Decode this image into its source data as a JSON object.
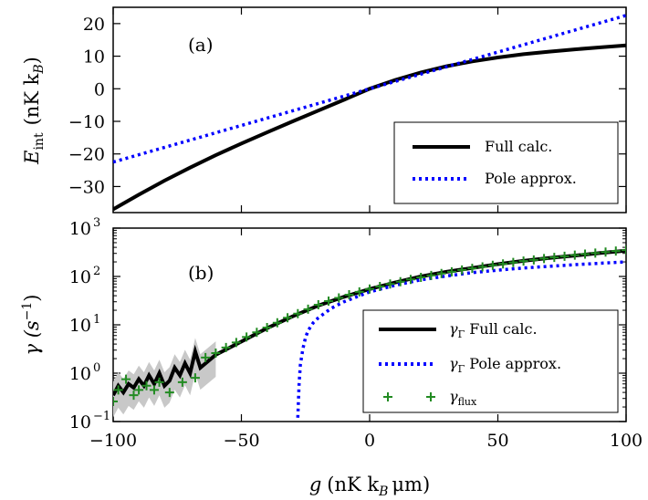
{
  "chart_data": [
    {
      "panel": "a",
      "type": "line",
      "panel_label": "(a)",
      "ylabel_parts": [
        "E",
        "int",
        "(nK k",
        "B",
        ")"
      ],
      "xlim": [
        -100,
        100
      ],
      "ylim": [
        -38,
        25
      ],
      "yticks": [
        20,
        10,
        0,
        -10,
        -20,
        -30
      ],
      "ytick_labels": [
        "20",
        "10",
        "0",
        "−10",
        "−20",
        "−30"
      ],
      "legend_position": "lower-right",
      "series": [
        {
          "name": "Full calc.",
          "color": "#000000",
          "style": "solid",
          "x": [
            -100,
            -90,
            -80,
            -70,
            -60,
            -50,
            -40,
            -30,
            -20,
            -10,
            0,
            10,
            20,
            30,
            40,
            50,
            60,
            70,
            80,
            90,
            100
          ],
          "y": [
            -37,
            -32.5,
            -28.2,
            -24.2,
            -20.4,
            -16.8,
            -13.4,
            -10.0,
            -6.7,
            -3.4,
            0,
            2.7,
            5.0,
            6.9,
            8.4,
            9.6,
            10.6,
            11.4,
            12.1,
            12.7,
            13.3
          ]
        },
        {
          "name": "Pole approx.",
          "color": "#0000ff",
          "style": "dotted",
          "x": [
            -100,
            -50,
            0,
            50,
            100
          ],
          "y": [
            -22.5,
            -11.25,
            0,
            11.25,
            22.5
          ]
        }
      ]
    },
    {
      "panel": "b",
      "type": "line",
      "panel_label": "(b)",
      "ylabel_parts": [
        "γ (s",
        "−1",
        ")"
      ],
      "xlabel_parts": [
        "g",
        "(nK k",
        "B",
        "μm)"
      ],
      "xlim": [
        -100,
        100
      ],
      "ylim": [
        0.1,
        1000
      ],
      "yscale": "log",
      "xticks": [
        -100,
        -50,
        0,
        50,
        100
      ],
      "xtick_labels": [
        "−100",
        "−50",
        "0",
        "50",
        "100"
      ],
      "ytick_labels": [
        {
          "base": "10",
          "exp": "−1",
          "value": 0.1
        },
        {
          "base": "10",
          "exp": "0",
          "value": 1
        },
        {
          "base": "10",
          "exp": "1",
          "value": 10
        },
        {
          "base": "10",
          "exp": "2",
          "value": 100
        },
        {
          "base": "10",
          "exp": "3",
          "value": 1000
        }
      ],
      "legend_position": "lower-right",
      "legend_labels": [
        {
          "sym": "γ",
          "sub": "Γ",
          "text": "Full calc."
        },
        {
          "sym": "γ",
          "sub": "Γ",
          "text": "Pole approx."
        },
        {
          "sym": "γ",
          "sub": "flux",
          "text": ""
        }
      ],
      "series": [
        {
          "name": "γΓ Full calc.",
          "color": "#000000",
          "style": "solid",
          "x": [
            -100,
            -98,
            -96,
            -94,
            -92,
            -90,
            -88,
            -86,
            -84,
            -82,
            -80,
            -78,
            -76,
            -74,
            -72,
            -70,
            -68,
            -66,
            -60,
            -50,
            -40,
            -30,
            -20,
            -10,
            0,
            10,
            20,
            30,
            40,
            50,
            60,
            70,
            80,
            90,
            100
          ],
          "y": [
            0.35,
            0.55,
            0.4,
            0.6,
            0.5,
            0.75,
            0.55,
            0.9,
            0.6,
            1.0,
            0.55,
            0.7,
            1.3,
            0.9,
            1.6,
            1.0,
            2.8,
            1.3,
            2.4,
            4.5,
            8.5,
            15,
            25,
            38,
            55,
            75,
            100,
            125,
            150,
            180,
            210,
            240,
            270,
            305,
            340
          ]
        },
        {
          "name": "γΓ Pole approx.",
          "color": "#0000ff",
          "style": "dotted",
          "x": [
            -28,
            -27.5,
            -27,
            -26,
            -25,
            -24,
            -22,
            -20,
            -15,
            -10,
            0,
            10,
            20,
            30,
            40,
            50,
            60,
            70,
            80,
            90,
            100
          ],
          "y": [
            0.12,
            0.6,
            1.5,
            3.2,
            5.5,
            7.6,
            11,
            14,
            22,
            30,
            48,
            66,
            85,
            102,
            120,
            135,
            150,
            162,
            175,
            188,
            200
          ]
        },
        {
          "name": "γflux",
          "color": "#228b22",
          "style": "plus-markers",
          "x": [
            -100,
            -98,
            -95,
            -92,
            -90,
            -87,
            -84,
            -82,
            -78,
            -73,
            -68,
            -64,
            -60,
            -56,
            -52,
            -48,
            -44,
            -40,
            -36,
            -32,
            -28,
            -24,
            -20,
            -16,
            -12,
            -8,
            -4,
            0,
            4,
            8,
            12,
            16,
            20,
            24,
            28,
            32,
            36,
            40,
            44,
            48,
            52,
            56,
            60,
            64,
            68,
            72,
            76,
            80,
            84,
            88,
            92,
            96,
            100
          ],
          "y": [
            0.26,
            0.45,
            0.75,
            0.35,
            0.45,
            0.55,
            0.45,
            0.65,
            0.4,
            0.65,
            0.8,
            2.1,
            2.6,
            3.4,
            4.3,
            5.6,
            7.0,
            8.8,
            11,
            14,
            17,
            21,
            26,
            31,
            36,
            42,
            48,
            55,
            62,
            70,
            78,
            87,
            96,
            105,
            115,
            125,
            136,
            147,
            158,
            170,
            182,
            195,
            208,
            220,
            235,
            248,
            262,
            276,
            290,
            305,
            320,
            335,
            350
          ]
        }
      ]
    }
  ]
}
